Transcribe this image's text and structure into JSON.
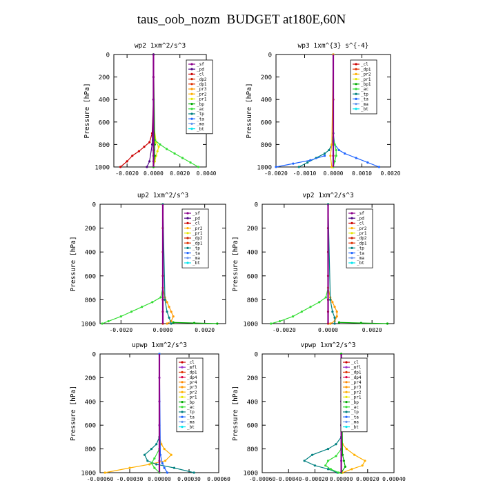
{
  "title": "taus_oob_nozm  BUDGET at180E,60N",
  "colors": {
    "sf": "#8b008b",
    "pd": "#4b0082",
    "cl": "#cc0000",
    "dp2": "#cc2200",
    "dp1": "#e03000",
    "pr3": "#ff9900",
    "pr2": "#ffb000",
    "pr1": "#e6e600",
    "bp": "#00aa00",
    "bp1": "#00aa00",
    "ac": "#33dd33",
    "tp": "#008080",
    "ta": "#1e64ff",
    "ma": "#6495ed",
    "bt": "#00e5ee",
    "mfl": "#9932cc",
    "dp4": "#dd0044",
    "pr4": "#ff8800"
  },
  "chart_data": [
    {
      "type": "line",
      "title": "wp2  1xm^2/s^3",
      "ylabel": "Pressure [hPa]",
      "ylim": [
        0,
        1000
      ],
      "y_inverted": true,
      "xlim": [
        -0.003,
        0.004
      ],
      "xticks": [
        "-0.0020",
        "0.0000",
        "0.0020",
        "0.0040"
      ],
      "xtick_values": [
        -0.002,
        0,
        0.002,
        0.004
      ],
      "yticks": [
        "0",
        "200",
        "400",
        "600",
        "800",
        "1000"
      ],
      "legend": [
        "_sf",
        "_pd",
        "_cl",
        "_dp2",
        "_dp1",
        "_pr3",
        "_pr2",
        "_pr1",
        "_bp",
        "_ac",
        "_tp",
        "_ta",
        "_ma",
        "_bt"
      ],
      "series": [
        {
          "name": "_sf",
          "key": "sf",
          "y": [
            0,
            200,
            400,
            600,
            760,
            800,
            850,
            900,
            950,
            1000
          ],
          "x": [
            0,
            0,
            0,
            0,
            0,
            0,
            0,
            0,
            0,
            0
          ]
        },
        {
          "name": "_cl",
          "key": "cl",
          "y": [
            0,
            400,
            700,
            780,
            820,
            860,
            900,
            950,
            1000
          ],
          "x": [
            0,
            0,
            -0.0001,
            -0.0003,
            -0.0007,
            -0.0011,
            -0.0016,
            -0.002,
            -0.0025
          ]
        },
        {
          "name": "_pr1",
          "key": "pr1",
          "y": [
            0,
            600,
            780,
            820,
            860,
            900,
            950,
            1000
          ],
          "x": [
            0,
            0,
            0.0002,
            0.0004,
            0.0003,
            0.0002,
            0.0001,
            0
          ]
        },
        {
          "name": "_ac",
          "key": "ac",
          "y": [
            0,
            600,
            760,
            800,
            840,
            880,
            920,
            960,
            1000
          ],
          "x": [
            0,
            0,
            0.0001,
            0.0005,
            0.001,
            0.0016,
            0.0022,
            0.0028,
            0.0034
          ]
        },
        {
          "name": "_bp",
          "key": "bp",
          "y": [
            0,
            800,
            900,
            1000
          ],
          "x": [
            0,
            0.0001,
            0.0001,
            0
          ]
        },
        {
          "name": "_pd",
          "key": "pd",
          "y": [
            0,
            400,
            800,
            950,
            1000
          ],
          "x": [
            0,
            0,
            -0.0001,
            -0.0003,
            -0.0005
          ]
        }
      ]
    },
    {
      "type": "line",
      "title": "wp3  1xm^{3} s^{-4}",
      "ylabel": "Pressure [hPa]",
      "ylim": [
        0,
        1000
      ],
      "y_inverted": true,
      "xlim": [
        -0.002,
        0.002
      ],
      "xticks": [
        "-0.0020",
        "-0.0010",
        "0.0000",
        "0.0010",
        "0.0020"
      ],
      "xtick_values": [
        -0.002,
        -0.001,
        0,
        0.001,
        0.002
      ],
      "yticks": [
        "0",
        "200",
        "400",
        "600",
        "800",
        "1000"
      ],
      "legend": [
        "_cl",
        "_dp1",
        "_pr2",
        "_pr1",
        "_bp1",
        "_ac",
        "_tp",
        "_ta",
        "_ma",
        "_bt"
      ],
      "series": [
        {
          "name": "_cl",
          "key": "cl",
          "y": [
            0,
            400,
            800,
            900,
            1000
          ],
          "x": [
            0,
            0,
            0,
            0,
            0
          ]
        },
        {
          "name": "_ta",
          "key": "ta",
          "y": [
            0,
            700,
            800,
            850,
            880,
            920,
            960,
            1000
          ],
          "x": [
            0,
            0,
            5e-05,
            0.0002,
            0.0004,
            0.0008,
            0.0012,
            0.0016
          ]
        },
        {
          "name": "_tp",
          "key": "tp",
          "y": [
            0,
            700,
            800,
            850,
            880,
            920,
            960,
            1000
          ],
          "x": [
            0,
            0,
            -5e-05,
            -0.00015,
            -0.0003,
            -0.0006,
            -0.0009,
            -0.0012
          ]
        },
        {
          "name": "_ta2",
          "key": "ta",
          "y": [
            900,
            940,
            970,
            1000
          ],
          "x": [
            -0.0003,
            -0.0008,
            -0.0014,
            -0.002
          ]
        },
        {
          "name": "_ac",
          "key": "ac",
          "y": [
            0,
            750,
            800,
            850,
            900,
            950,
            1000
          ],
          "x": [
            0,
            0,
            5e-05,
            0.0001,
            0.0001,
            5e-05,
            0
          ]
        },
        {
          "name": "_pr2",
          "key": "pr2",
          "y": [
            0,
            800,
            900,
            1000
          ],
          "x": [
            0,
            -5e-05,
            -0.0001,
            -5e-05
          ]
        }
      ]
    },
    {
      "type": "line",
      "title": "up2  1xm^2/s^3",
      "ylabel": "Pressure [hPa]",
      "ylim": [
        0,
        1000
      ],
      "y_inverted": true,
      "xlim": [
        -0.003,
        0.003
      ],
      "xticks": [
        "-0.0020",
        "0.0000",
        "0.0020"
      ],
      "xtick_values": [
        -0.002,
        0,
        0.002
      ],
      "yticks": [
        "0",
        "200",
        "400",
        "600",
        "800",
        "1000"
      ],
      "legend": [
        "_sf",
        "_pd",
        "_cl",
        "_pr2",
        "_pr1",
        "_dp2",
        "_dp1",
        "_tp",
        "_ta",
        "_ma",
        "_bt"
      ],
      "series": [
        {
          "name": "_sf",
          "key": "dp2",
          "y": [
            0,
            200,
            400,
            600,
            800,
            900,
            1000
          ],
          "x": [
            0,
            0,
            0,
            0,
            0,
            0,
            0
          ]
        },
        {
          "name": "_dp1",
          "key": "ac",
          "y": [
            0,
            700,
            780,
            820,
            860,
            900,
            940,
            980,
            1000
          ],
          "x": [
            0,
            0,
            -0.0001,
            -0.0005,
            -0.001,
            -0.0015,
            -0.002,
            -0.0026,
            -0.0029
          ]
        },
        {
          "name": "_pr1",
          "key": "pr3",
          "y": [
            0,
            700,
            780,
            820,
            860,
            900,
            940,
            980,
            1000
          ],
          "x": [
            0,
            0,
            0.0001,
            0.0002,
            0.0003,
            0.0004,
            0.0005,
            0.0004,
            0.0002
          ]
        },
        {
          "name": "_tp",
          "key": "tp",
          "y": [
            0,
            800,
            900,
            950,
            1000
          ],
          "x": [
            0,
            0.0001,
            0.0002,
            0.0003,
            0.0004
          ]
        },
        {
          "name": "_bp",
          "key": "bp",
          "y": [
            990,
            995,
            1000
          ],
          "x": [
            0.0005,
            0.0015,
            0.0026
          ]
        }
      ]
    },
    {
      "type": "line",
      "title": "vp2  1xm^2/s^3",
      "ylabel": "Pressure [hPa]",
      "ylim": [
        0,
        1000
      ],
      "y_inverted": true,
      "xlim": [
        -0.003,
        0.003
      ],
      "xticks": [
        "-0.0020",
        "0.0000",
        "0.0020"
      ],
      "xtick_values": [
        -0.002,
        0,
        0.002
      ],
      "yticks": [
        "0",
        "200",
        "400",
        "600",
        "800",
        "1000"
      ],
      "legend": [
        "_sf",
        "_pd",
        "_cl",
        "_pr2",
        "_pr1",
        "_dp2",
        "_dp1",
        "_tp",
        "_ta",
        "_ma",
        "_bt"
      ],
      "series": [
        {
          "name": "_sf",
          "key": "dp2",
          "y": [
            0,
            200,
            400,
            600,
            800,
            900,
            1000
          ],
          "x": [
            0,
            0,
            0,
            0,
            0,
            0,
            0
          ]
        },
        {
          "name": "_dp1",
          "key": "ac",
          "y": [
            0,
            700,
            780,
            820,
            860,
            900,
            940,
            980,
            1000
          ],
          "x": [
            0,
            0,
            -0.0001,
            -0.0004,
            -0.0008,
            -0.0012,
            -0.0016,
            -0.0022,
            -0.0026
          ]
        },
        {
          "name": "_pr1",
          "key": "pr3",
          "y": [
            0,
            700,
            780,
            820,
            860,
            900,
            940,
            980,
            1000
          ],
          "x": [
            0,
            0,
            0.0001,
            0.0002,
            0.0003,
            0.0004,
            0.0004,
            0.0003,
            0.0001
          ]
        },
        {
          "name": "_tp",
          "key": "tp",
          "y": [
            0,
            800,
            900,
            950,
            1000
          ],
          "x": [
            0,
            0.0001,
            0.0002,
            0.0003,
            0.0003
          ]
        },
        {
          "name": "_bp",
          "key": "bp",
          "y": [
            990,
            995,
            1000
          ],
          "x": [
            0.0005,
            0.0015,
            0.0027
          ]
        }
      ]
    },
    {
      "type": "line",
      "title": "upwp  1xm^2/s^3",
      "ylabel": "Pressure [hPa]",
      "ylim": [
        0,
        1000
      ],
      "y_inverted": true,
      "xlim": [
        -0.0006,
        0.0006
      ],
      "xticks": [
        "-0.00060",
        "-0.00030",
        "0.00000",
        "0.00030",
        "0.00060"
      ],
      "xtick_values": [
        -0.0006,
        -0.0003,
        0,
        0.0003,
        0.0006
      ],
      "yticks": [
        "0",
        "200",
        "400",
        "600",
        "800",
        "1000"
      ],
      "legend": [
        "_cl",
        "_mfl",
        "_dp1",
        "_dp4",
        "_pr4",
        "_pr3",
        "_pr2",
        "_pr1",
        "_bp",
        "_ac",
        "_tp",
        "_ta",
        "_ma",
        "_bt"
      ],
      "series": [
        {
          "name": "_mfl",
          "key": "mfl",
          "y": [
            0,
            200,
            400,
            600,
            800,
            900,
            1000
          ],
          "x": [
            0,
            0,
            0,
            0,
            0,
            0,
            0
          ]
        },
        {
          "name": "_pr2",
          "key": "pr2",
          "y": [
            0,
            700,
            760,
            800,
            850,
            900,
            930,
            960,
            1000
          ],
          "x": [
            0,
            0,
            2e-05,
            5e-05,
            0.00012,
            6e-05,
            -0.0001,
            -0.0003,
            -0.00055
          ]
        },
        {
          "name": "_tp",
          "key": "tp",
          "y": [
            0,
            700,
            760,
            800,
            850,
            900,
            930,
            960,
            1000
          ],
          "x": [
            0,
            0,
            -3e-05,
            -8e-05,
            -0.00015,
            -0.00012,
            -3e-05,
            0.00015,
            0.00035
          ]
        },
        {
          "name": "_ac",
          "key": "ac",
          "y": [
            0,
            800,
            880,
            920,
            960,
            1000
          ],
          "x": [
            0,
            0,
            -5e-05,
            -8e-05,
            -5e-05,
            0
          ]
        },
        {
          "name": "_ta",
          "key": "ta",
          "y": [
            0,
            850,
            920,
            960,
            1000
          ],
          "x": [
            0,
            1e-05,
            3e-05,
            5e-05,
            8e-05
          ]
        }
      ]
    },
    {
      "type": "line",
      "title": "vpwp  1xm^2/s^3",
      "ylabel": "Pressure [hPa]",
      "ylim": [
        0,
        1000
      ],
      "y_inverted": true,
      "xlim": [
        -0.0006,
        0.0004
      ],
      "xticks": [
        "-0.00060",
        "-0.00040",
        "-0.00020",
        "0.00000",
        "0.00020",
        "0.00040"
      ],
      "xtick_values": [
        -0.0006,
        -0.0004,
        -0.0002,
        0,
        0.0002,
        0.0004
      ],
      "yticks": [
        "0",
        "200",
        "400",
        "600",
        "800",
        "1000"
      ],
      "legend": [
        "_cl",
        "_mfl",
        "_dp1",
        "_dp4",
        "_pr4",
        "_pr3",
        "_pr2",
        "_pr1",
        "_bp",
        "_ac",
        "_tp",
        "_ta",
        "_ma",
        "_bt"
      ],
      "series": [
        {
          "name": "_mfl",
          "key": "mfl",
          "y": [
            0,
            200,
            400,
            600,
            800,
            900,
            1000
          ],
          "x": [
            0,
            0,
            0,
            0,
            0,
            0,
            0
          ]
        },
        {
          "name": "_pr2",
          "key": "pr2",
          "y": [
            0,
            700,
            760,
            800,
            850,
            900,
            940,
            970,
            1000
          ],
          "x": [
            0,
            0,
            1e-05,
            4e-05,
            0.0001,
            0.00018,
            0.00016,
            8e-05,
            1e-05
          ]
        },
        {
          "name": "_tp",
          "key": "tp",
          "y": [
            0,
            700,
            760,
            800,
            850,
            900,
            940,
            970,
            1000
          ],
          "x": [
            0,
            0,
            -4e-05,
            -0.0001,
            -0.00022,
            -0.00028,
            -0.0002,
            -0.0001,
            -3e-05
          ]
        },
        {
          "name": "_ac",
          "key": "ac",
          "y": [
            0,
            800,
            860,
            900,
            940,
            970,
            1000
          ],
          "x": [
            0,
            0,
            -4e-05,
            -0.0001,
            -0.00012,
            -8e-05,
            -2e-05
          ]
        },
        {
          "name": "_bp",
          "key": "bp",
          "y": [
            0,
            850,
            900,
            950,
            1000
          ],
          "x": [
            0,
            1e-05,
            2e-05,
            3e-05,
            0
          ]
        }
      ]
    }
  ]
}
